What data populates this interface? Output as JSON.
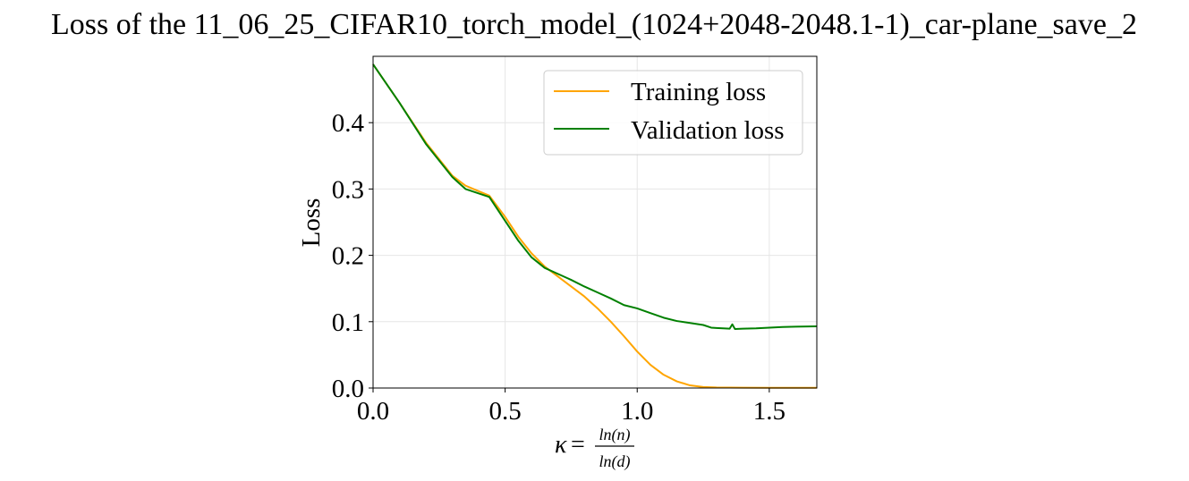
{
  "chart_data": {
    "type": "line",
    "title": "Loss of the 11_06_25_CIFAR10_torch_model_(1024+2048-2048.1-1)_car-plane_save_2",
    "ylabel": "Loss",
    "xlabel": {
      "prefix": "κ",
      "equals": "=",
      "numerator": "ln(n)",
      "denominator": "ln(d)"
    },
    "xlim": [
      0.0,
      1.68
    ],
    "ylim": [
      0.0,
      0.5
    ],
    "x_ticks": [
      0.0,
      0.5,
      1.0,
      1.5
    ],
    "x_tick_labels": [
      "0.0",
      "0.5",
      "1.0",
      "1.5"
    ],
    "y_ticks": [
      0.0,
      0.1,
      0.2,
      0.3,
      0.4
    ],
    "y_tick_labels": [
      "0.0",
      "0.1",
      "0.2",
      "0.3",
      "0.4"
    ],
    "grid": true,
    "legend_position": "upper right",
    "series": [
      {
        "name": "Training loss",
        "color": "#FFA500",
        "points": [
          [
            0.0,
            0.488
          ],
          [
            0.1,
            0.43
          ],
          [
            0.2,
            0.37
          ],
          [
            0.3,
            0.32
          ],
          [
            0.35,
            0.305
          ],
          [
            0.44,
            0.29
          ],
          [
            0.5,
            0.258
          ],
          [
            0.55,
            0.228
          ],
          [
            0.6,
            0.203
          ],
          [
            0.65,
            0.183
          ],
          [
            0.7,
            0.168
          ],
          [
            0.75,
            0.153
          ],
          [
            0.8,
            0.138
          ],
          [
            0.85,
            0.12
          ],
          [
            0.9,
            0.1
          ],
          [
            0.95,
            0.078
          ],
          [
            1.0,
            0.055
          ],
          [
            1.05,
            0.035
          ],
          [
            1.1,
            0.02
          ],
          [
            1.15,
            0.01
          ],
          [
            1.2,
            0.004
          ],
          [
            1.25,
            0.0015
          ],
          [
            1.3,
            0.0008
          ],
          [
            1.4,
            0.0005
          ],
          [
            1.5,
            0.0004
          ],
          [
            1.68,
            0.0003
          ]
        ]
      },
      {
        "name": "Validation loss",
        "color": "#008000",
        "points": [
          [
            0.0,
            0.488
          ],
          [
            0.1,
            0.43
          ],
          [
            0.2,
            0.368
          ],
          [
            0.3,
            0.318
          ],
          [
            0.35,
            0.3
          ],
          [
            0.44,
            0.288
          ],
          [
            0.5,
            0.252
          ],
          [
            0.55,
            0.222
          ],
          [
            0.6,
            0.197
          ],
          [
            0.65,
            0.181
          ],
          [
            0.7,
            0.172
          ],
          [
            0.75,
            0.163
          ],
          [
            0.8,
            0.153
          ],
          [
            0.85,
            0.144
          ],
          [
            0.9,
            0.135
          ],
          [
            0.95,
            0.125
          ],
          [
            1.0,
            0.12
          ],
          [
            1.05,
            0.113
          ],
          [
            1.1,
            0.106
          ],
          [
            1.15,
            0.101
          ],
          [
            1.2,
            0.098
          ],
          [
            1.25,
            0.095
          ],
          [
            1.28,
            0.091
          ],
          [
            1.3,
            0.0905
          ],
          [
            1.35,
            0.0895
          ],
          [
            1.36,
            0.096
          ],
          [
            1.37,
            0.089
          ],
          [
            1.4,
            0.0895
          ],
          [
            1.45,
            0.09
          ],
          [
            1.5,
            0.091
          ],
          [
            1.55,
            0.092
          ],
          [
            1.6,
            0.0925
          ],
          [
            1.68,
            0.093
          ]
        ]
      }
    ]
  }
}
